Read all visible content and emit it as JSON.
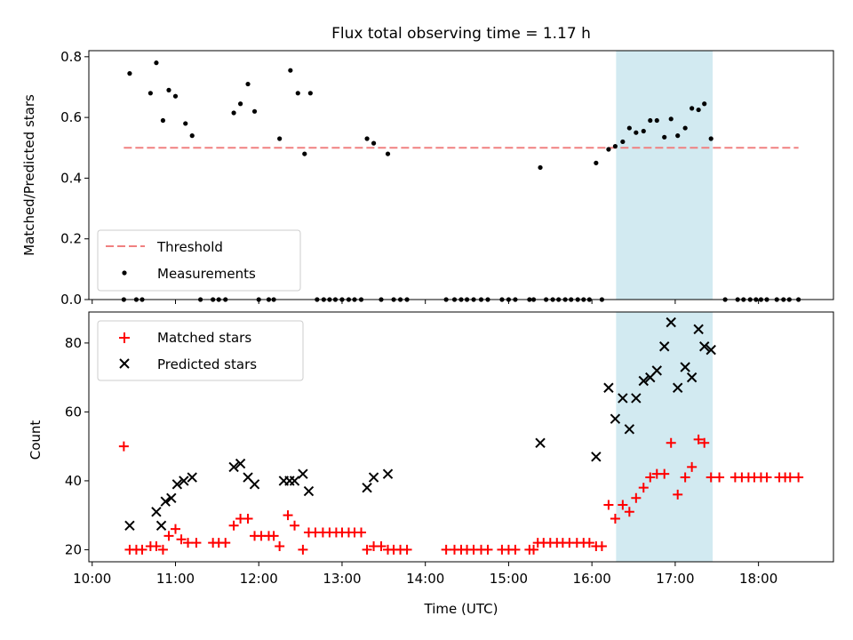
{
  "chart_data": [
    {
      "type": "scatter",
      "title": "Flux total observing time = 1.17 h",
      "ylabel": "Matched/Predicted stars",
      "ylim": [
        0,
        0.82
      ],
      "yticks": [
        0.0,
        0.2,
        0.4,
        0.6,
        0.8
      ],
      "ytick_labels": [
        "0.0",
        "0.2",
        "0.4",
        "0.6",
        "0.8"
      ],
      "x_axis": "shared with lower panel (time of day, decimal hours UTC)",
      "xlim": [
        9.96,
        18.9
      ],
      "shaded_span": {
        "x": [
          16.29,
          17.45
        ],
        "color": "#add8e6"
      },
      "threshold": {
        "name": "Threshold",
        "y": 0.5,
        "x": [
          10.38,
          18.48
        ],
        "color": "#f08080",
        "style": "dashed"
      },
      "legend": {
        "placement": "lower-left",
        "entries": [
          "Threshold",
          "Measurements"
        ]
      },
      "series": [
        {
          "name": "Measurements",
          "color": "#000000",
          "points": [
            [
              10.38,
              0
            ],
            [
              10.45,
              0.745
            ],
            [
              10.53,
              0
            ],
            [
              10.6,
              0
            ],
            [
              10.7,
              0.68
            ],
            [
              10.77,
              0.78
            ],
            [
              10.85,
              0.59
            ],
            [
              10.92,
              0.69
            ],
            [
              11.0,
              0.67
            ],
            [
              11.12,
              0.58
            ],
            [
              11.2,
              0.54
            ],
            [
              11.3,
              0
            ],
            [
              11.45,
              0
            ],
            [
              11.52,
              0
            ],
            [
              11.6,
              0
            ],
            [
              11.7,
              0.615
            ],
            [
              11.78,
              0.645
            ],
            [
              11.87,
              0.71
            ],
            [
              11.95,
              0.62
            ],
            [
              12.0,
              0
            ],
            [
              12.12,
              0
            ],
            [
              12.18,
              0
            ],
            [
              12.25,
              0.53
            ],
            [
              12.38,
              0.755
            ],
            [
              12.47,
              0.68
            ],
            [
              12.55,
              0.48
            ],
            [
              12.62,
              0.68
            ],
            [
              12.7,
              0
            ],
            [
              12.78,
              0
            ],
            [
              12.85,
              0
            ],
            [
              12.92,
              0
            ],
            [
              13.0,
              0
            ],
            [
              13.08,
              0
            ],
            [
              13.15,
              0
            ],
            [
              13.23,
              0
            ],
            [
              13.3,
              0.53
            ],
            [
              13.38,
              0.515
            ],
            [
              13.47,
              0
            ],
            [
              13.55,
              0.48
            ],
            [
              13.62,
              0
            ],
            [
              13.7,
              0
            ],
            [
              13.78,
              0
            ],
            [
              14.25,
              0
            ],
            [
              14.35,
              0
            ],
            [
              14.43,
              0
            ],
            [
              14.5,
              0
            ],
            [
              14.58,
              0
            ],
            [
              14.67,
              0
            ],
            [
              14.75,
              0
            ],
            [
              14.92,
              0
            ],
            [
              15.0,
              0
            ],
            [
              15.08,
              0
            ],
            [
              15.25,
              0
            ],
            [
              15.3,
              0
            ],
            [
              15.38,
              0.435
            ],
            [
              15.45,
              0
            ],
            [
              15.53,
              0
            ],
            [
              15.6,
              0
            ],
            [
              15.68,
              0
            ],
            [
              15.75,
              0
            ],
            [
              15.83,
              0
            ],
            [
              15.9,
              0
            ],
            [
              15.97,
              0
            ],
            [
              16.05,
              0.45
            ],
            [
              16.12,
              0
            ],
            [
              16.2,
              0.495
            ],
            [
              16.28,
              0.505
            ],
            [
              16.37,
              0.52
            ],
            [
              16.45,
              0.565
            ],
            [
              16.53,
              0.55
            ],
            [
              16.62,
              0.555
            ],
            [
              16.7,
              0.59
            ],
            [
              16.78,
              0.59
            ],
            [
              16.87,
              0.535
            ],
            [
              16.95,
              0.595
            ],
            [
              17.03,
              0.54
            ],
            [
              17.12,
              0.565
            ],
            [
              17.2,
              0.63
            ],
            [
              17.28,
              0.625
            ],
            [
              17.35,
              0.645
            ],
            [
              17.43,
              0.53
            ],
            [
              17.6,
              0
            ],
            [
              17.75,
              0
            ],
            [
              17.82,
              0
            ],
            [
              17.9,
              0
            ],
            [
              17.97,
              0
            ],
            [
              18.03,
              0
            ],
            [
              18.1,
              0
            ],
            [
              18.22,
              0
            ],
            [
              18.3,
              0
            ],
            [
              18.37,
              0
            ],
            [
              18.48,
              0
            ]
          ]
        }
      ]
    },
    {
      "type": "scatter",
      "ylabel": "Count",
      "xlabel": "Time (UTC)",
      "xlim": [
        9.96,
        18.9
      ],
      "xticks": [
        10,
        11,
        12,
        13,
        14,
        15,
        16,
        17,
        18
      ],
      "xtick_labels": [
        "10:00",
        "11:00",
        "12:00",
        "13:00",
        "14:00",
        "15:00",
        "16:00",
        "17:00",
        "18:00"
      ],
      "ylim": [
        16.5,
        89
      ],
      "yticks": [
        20,
        40,
        60,
        80
      ],
      "ytick_labels": [
        "20",
        "40",
        "60",
        "80"
      ],
      "shaded_span": {
        "x": [
          16.29,
          17.45
        ],
        "color": "#add8e6"
      },
      "legend": {
        "placement": "top-left",
        "entries": [
          "Matched stars",
          "Predicted stars"
        ]
      },
      "series": [
        {
          "name": "Matched stars",
          "marker": "plus",
          "color": "#ff0000",
          "points": [
            [
              10.38,
              50
            ],
            [
              10.45,
              20
            ],
            [
              10.53,
              20
            ],
            [
              10.6,
              20
            ],
            [
              10.7,
              21
            ],
            [
              10.77,
              21
            ],
            [
              10.85,
              20
            ],
            [
              10.92,
              24
            ],
            [
              11.0,
              26
            ],
            [
              11.07,
              23
            ],
            [
              11.15,
              22
            ],
            [
              11.25,
              22
            ],
            [
              11.45,
              22
            ],
            [
              11.52,
              22
            ],
            [
              11.6,
              22
            ],
            [
              11.7,
              27
            ],
            [
              11.78,
              29
            ],
            [
              11.87,
              29
            ],
            [
              11.95,
              24
            ],
            [
              12.03,
              24
            ],
            [
              12.12,
              24
            ],
            [
              12.18,
              24
            ],
            [
              12.25,
              21
            ],
            [
              12.35,
              30
            ],
            [
              12.43,
              27
            ],
            [
              12.53,
              20
            ],
            [
              12.6,
              25
            ],
            [
              12.68,
              25
            ],
            [
              12.77,
              25
            ],
            [
              12.85,
              25
            ],
            [
              12.93,
              25
            ],
            [
              13.0,
              25
            ],
            [
              13.08,
              25
            ],
            [
              13.15,
              25
            ],
            [
              13.23,
              25
            ],
            [
              13.3,
              20
            ],
            [
              13.38,
              21
            ],
            [
              13.47,
              21
            ],
            [
              13.55,
              20
            ],
            [
              13.62,
              20
            ],
            [
              13.7,
              20
            ],
            [
              13.78,
              20
            ],
            [
              14.25,
              20
            ],
            [
              14.35,
              20
            ],
            [
              14.43,
              20
            ],
            [
              14.5,
              20
            ],
            [
              14.58,
              20
            ],
            [
              14.67,
              20
            ],
            [
              14.75,
              20
            ],
            [
              14.92,
              20
            ],
            [
              15.0,
              20
            ],
            [
              15.08,
              20
            ],
            [
              15.25,
              20
            ],
            [
              15.3,
              20
            ],
            [
              15.35,
              22
            ],
            [
              15.42,
              22
            ],
            [
              15.5,
              22
            ],
            [
              15.58,
              22
            ],
            [
              15.65,
              22
            ],
            [
              15.73,
              22
            ],
            [
              15.82,
              22
            ],
            [
              15.9,
              22
            ],
            [
              15.97,
              22
            ],
            [
              16.05,
              21
            ],
            [
              16.12,
              21
            ],
            [
              16.2,
              33
            ],
            [
              16.28,
              29
            ],
            [
              16.37,
              33
            ],
            [
              16.45,
              31
            ],
            [
              16.53,
              35
            ],
            [
              16.62,
              38
            ],
            [
              16.7,
              41
            ],
            [
              16.78,
              42
            ],
            [
              16.87,
              42
            ],
            [
              16.95,
              51
            ],
            [
              17.03,
              36
            ],
            [
              17.12,
              41
            ],
            [
              17.2,
              44
            ],
            [
              17.28,
              52
            ],
            [
              17.35,
              51
            ],
            [
              17.43,
              41
            ],
            [
              17.53,
              41
            ],
            [
              17.72,
              41
            ],
            [
              17.8,
              41
            ],
            [
              17.88,
              41
            ],
            [
              17.95,
              41
            ],
            [
              18.03,
              41
            ],
            [
              18.1,
              41
            ],
            [
              18.25,
              41
            ],
            [
              18.32,
              41
            ],
            [
              18.38,
              41
            ],
            [
              18.48,
              41
            ]
          ]
        },
        {
          "name": "Predicted stars",
          "marker": "x",
          "color": "#000000",
          "points": [
            [
              10.45,
              27
            ],
            [
              10.77,
              31
            ],
            [
              10.83,
              27
            ],
            [
              10.88,
              34
            ],
            [
              10.95,
              35
            ],
            [
              11.02,
              39
            ],
            [
              11.1,
              40
            ],
            [
              11.2,
              41
            ],
            [
              11.7,
              44
            ],
            [
              11.78,
              45
            ],
            [
              11.87,
              41
            ],
            [
              11.95,
              39
            ],
            [
              12.3,
              40
            ],
            [
              12.37,
              40
            ],
            [
              12.43,
              40
            ],
            [
              12.53,
              42
            ],
            [
              12.6,
              37
            ],
            [
              13.3,
              38
            ],
            [
              13.38,
              41
            ],
            [
              13.55,
              42
            ],
            [
              15.38,
              51
            ],
            [
              16.05,
              47
            ],
            [
              16.2,
              67
            ],
            [
              16.28,
              58
            ],
            [
              16.37,
              64
            ],
            [
              16.45,
              55
            ],
            [
              16.53,
              64
            ],
            [
              16.62,
              69
            ],
            [
              16.7,
              70
            ],
            [
              16.78,
              72
            ],
            [
              16.87,
              79
            ],
            [
              16.95,
              86
            ],
            [
              17.03,
              67
            ],
            [
              17.12,
              73
            ],
            [
              17.2,
              70
            ],
            [
              17.28,
              84
            ],
            [
              17.35,
              79
            ],
            [
              17.43,
              78
            ]
          ]
        }
      ]
    }
  ]
}
